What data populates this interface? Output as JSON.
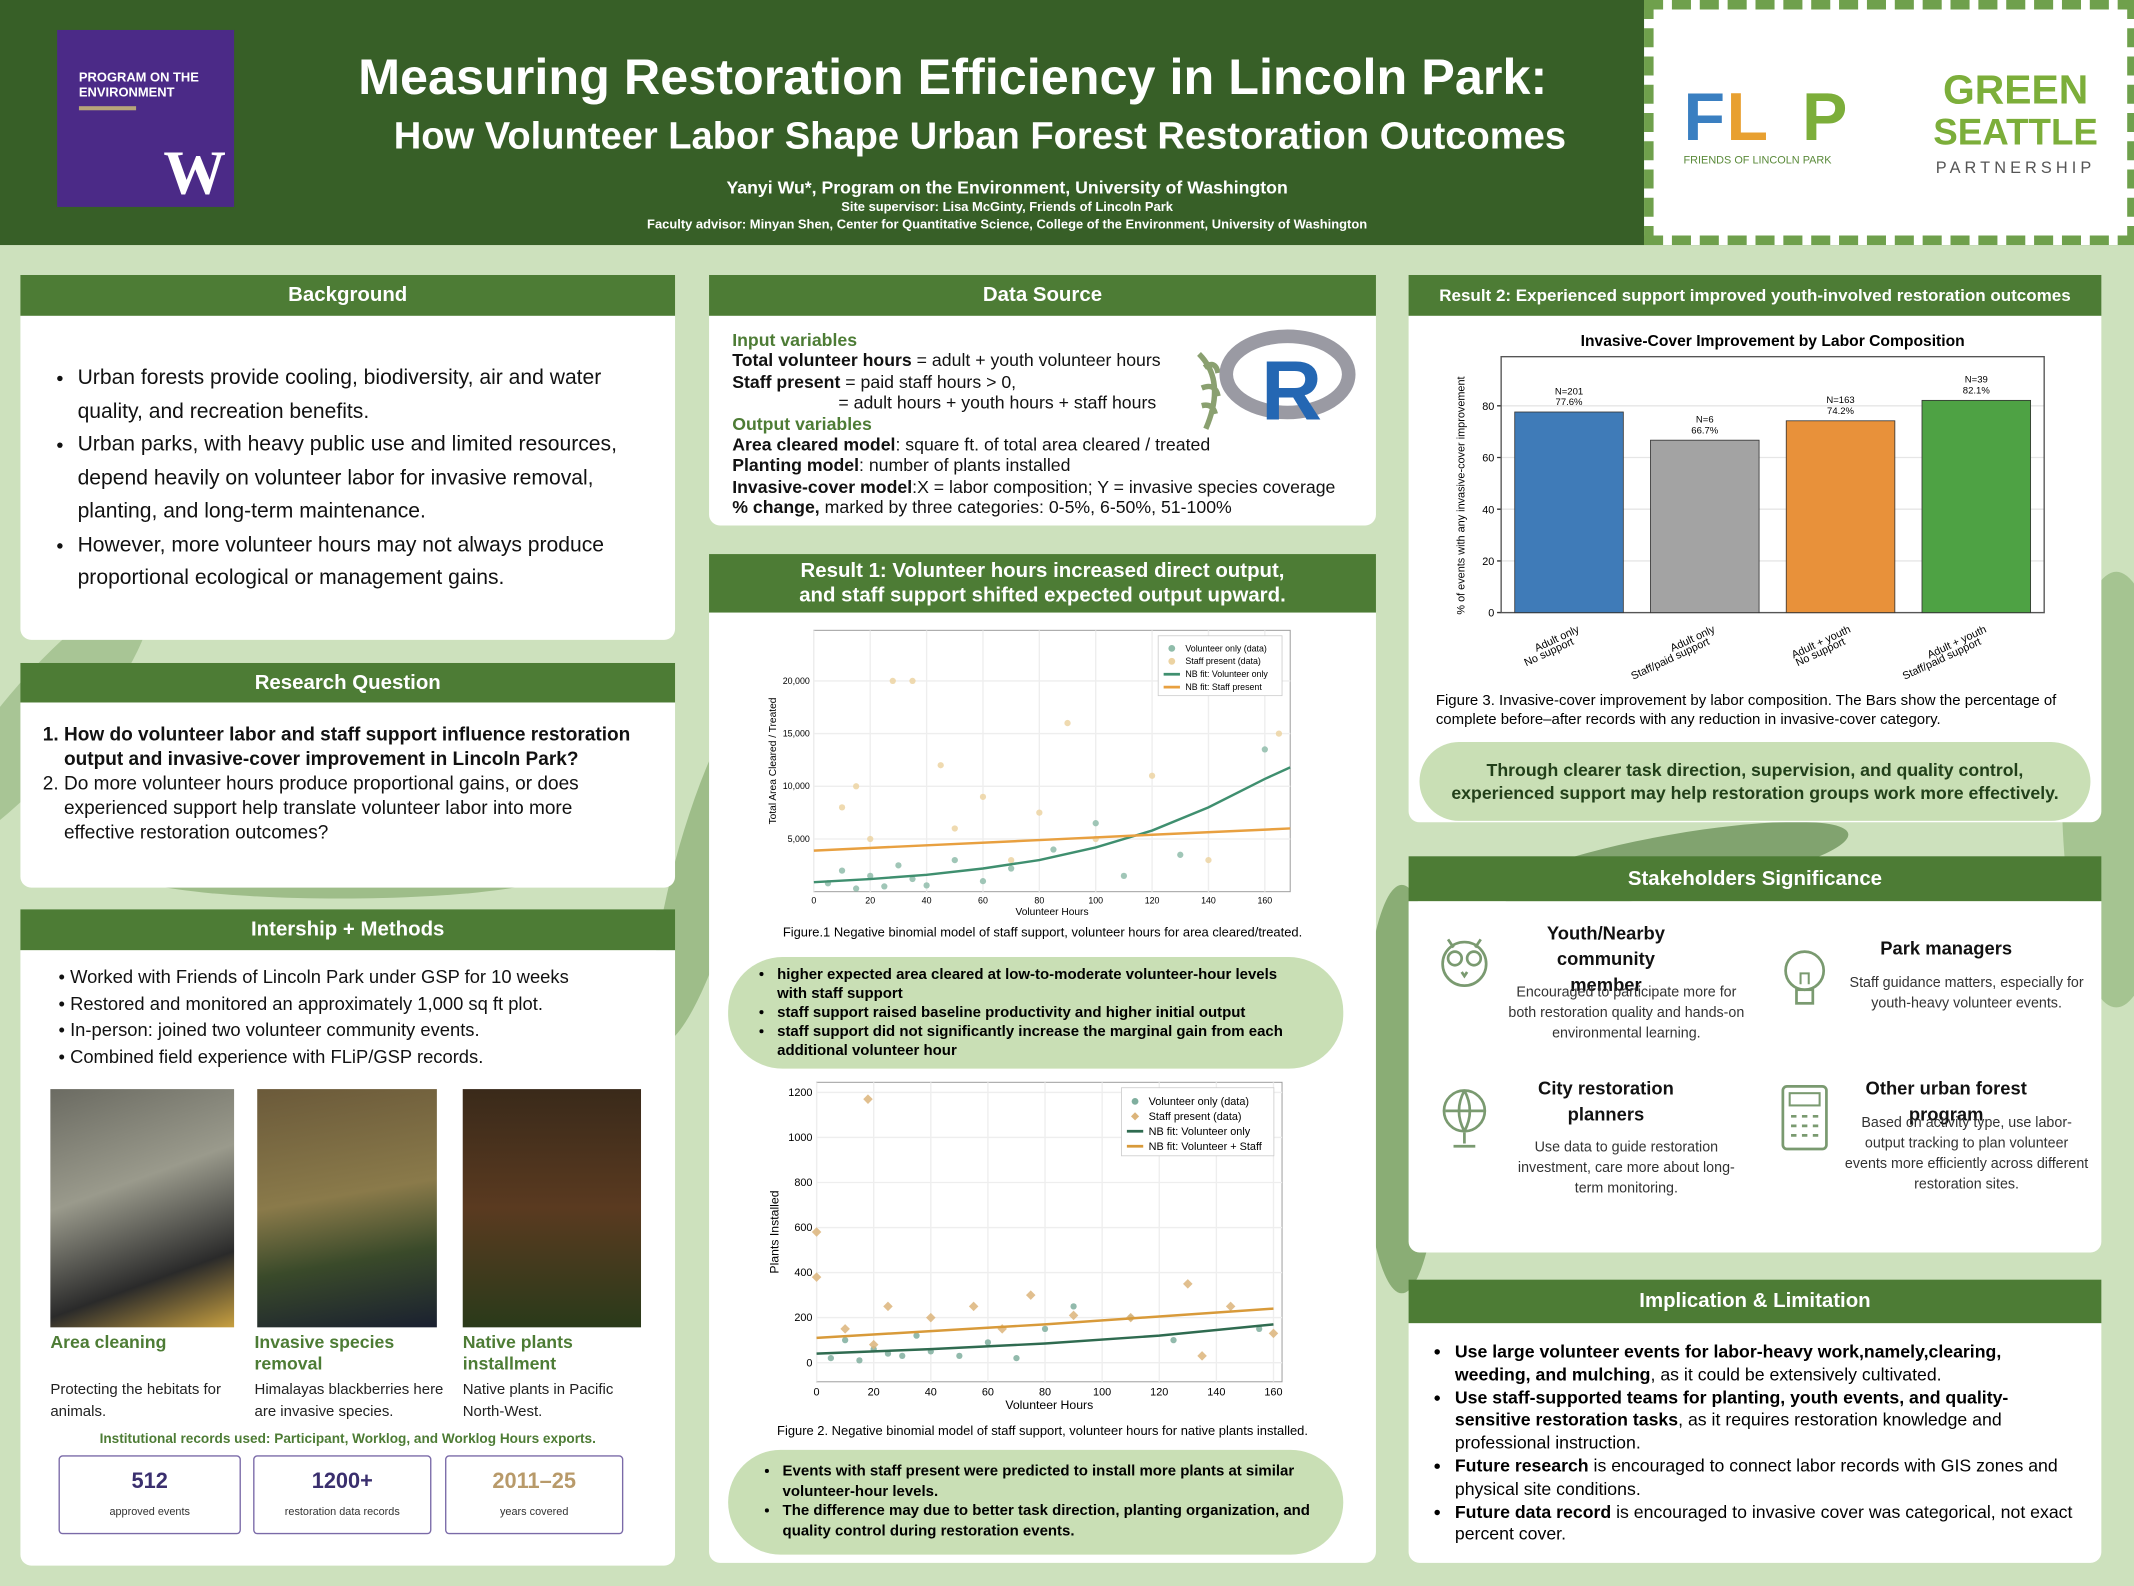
{
  "header": {
    "org": "PROGRAM ON THE ENVIRONMENT",
    "org_mark": "W",
    "title": "Measuring Restoration Efficiency in Lincoln Park:",
    "subtitle": "How Volunteer Labor  Shape Urban Forest Restoration Outcomes",
    "author": "Yanyi Wu*, Program on the Environment, University of Washington",
    "supervisor": "Site supervisor: Lisa McGinty, Friends of Lincoln Park",
    "advisor": "Faculty advisor: Minyan Shen, Center for Quantitative Science, College of the Environment, University of Washington",
    "flip_logo": [
      "F",
      "L",
      "P"
    ],
    "flip_name": "FRIENDS OF LINCOLN PARK",
    "gsp_logo": [
      "GREEN",
      "SEATTLE",
      "PARTNERSHIP"
    ]
  },
  "background": {
    "title": "Background",
    "bullets": [
      "Urban forests provide cooling, biodiversity, air and water quality, and recreation benefits.",
      "Urban parks, with heavy public use and limited  resources, depend heavily on volunteer labor for invasive removal, planting, and long-term maintenance.",
      "However, more volunteer hours may not always produce proportional ecological or management gains."
    ]
  },
  "research_question": {
    "title": "Research Question",
    "items": [
      "How do volunteer labor and staff support influence restoration output and invasive-cover improvement in Lincoln Park?",
      "Do more volunteer hours produce proportional gains, or does experienced support help translate volunteer labor into more effective restoration outcomes?"
    ]
  },
  "methods": {
    "title": "Intership + Methods",
    "bullets": [
      "Worked with Friends of Lincoln Park under GSP for 10 weeks",
      "Restored and monitored an approximately 1,000 sq ft plot.",
      "In-person: joined two volunteer community events.",
      "Combined field experience with FLiP/GSP records."
    ],
    "photos": [
      {
        "title": "Area cleaning",
        "text": "Protecting the hebitats for animals."
      },
      {
        "title": "Invasive species removal",
        "text": "Himalayas blackberries here are invasive species."
      },
      {
        "title": "Native plants installment",
        "text": "Native plants in Pacific North-West."
      }
    ],
    "records_note": "Institutional records used: Participant, Worklog, and Worklog Hours exports.",
    "stats": [
      {
        "value": 512,
        "label": "approved events"
      },
      {
        "value": "1200+",
        "label": "restoration data records"
      },
      {
        "value": "2011–25",
        "label": "years covered"
      }
    ]
  },
  "data_source": {
    "title": "Data Source",
    "input_heading": "Input variables",
    "input": [
      {
        "b": "Total volunteer hours",
        "t": " = adult + youth volunteer hours"
      },
      {
        "b": "Staff present",
        "t": " = paid staff hours > 0,"
      },
      {
        "t": "= adult hours  + youth hours + staff hours"
      }
    ],
    "output_heading": "Output variables",
    "output": [
      {
        "b": "Area cleared model",
        "t": ": square ft. of total area cleared / treated"
      },
      {
        "b": "Planting model",
        "t": ":  number of plants installed"
      },
      {
        "b": "Invasive-cover model",
        "t": ":X = labor composition; Y = invasive species coverage"
      },
      {
        "b": "% change,",
        "t": " marked by three categories: 0-5%, 6-50%, 51-100%"
      }
    ],
    "r_logo": "R"
  },
  "result1": {
    "title": [
      "Result 1: Volunteer hours increased direct output,",
      "and staff support shifted expected output upward."
    ],
    "figure1": {
      "type": "scatter",
      "x_label": "Volunteer Hours",
      "y_label": "Total Area Cleared / Treated",
      "xlim": [
        0,
        169
      ],
      "ylim": [
        0,
        24800
      ],
      "xticks": [
        0,
        20,
        40,
        60,
        80,
        100,
        120,
        140,
        160
      ],
      "yticks": [
        {
          "value": 5000,
          "label": "5,000"
        },
        {
          "value": 10000,
          "label": "10,000"
        },
        {
          "value": 15000,
          "label": "15,000"
        },
        {
          "value": 20000,
          "label": "20,000"
        }
      ],
      "legend": "upper right",
      "series": [
        {
          "name": "Volunteer only (data)",
          "color": "#8fbcaa",
          "marker": "circle",
          "x": [
            5,
            10,
            15,
            20,
            25,
            30,
            35,
            40,
            50,
            60,
            70,
            85,
            100,
            110,
            130,
            160
          ],
          "values": [
            800,
            2000,
            300,
            1500,
            500,
            2500,
            1200,
            600,
            3000,
            1000,
            2200,
            4000,
            6500,
            1500,
            3500,
            13500
          ]
        },
        {
          "name": "Staff present (data)",
          "color": "#ecd3a2",
          "marker": "circle",
          "x": [
            10,
            15,
            20,
            28,
            35,
            45,
            50,
            60,
            70,
            80,
            90,
            100,
            120,
            140,
            165
          ],
          "values": [
            8000,
            10000,
            5000,
            20000,
            20000,
            12000,
            6000,
            9000,
            3000,
            7500,
            16000,
            5000,
            11000,
            3000,
            15000
          ]
        },
        {
          "name": "NB fit: Volunteer only",
          "color": "#3f8f6f",
          "kind": "line",
          "x": [
            0,
            20,
            40,
            60,
            80,
            100,
            120,
            140,
            160,
            169
          ],
          "values": [
            900,
            1200,
            1600,
            2200,
            3000,
            4200,
            5800,
            8000,
            10700,
            11800
          ]
        },
        {
          "name": "NB fit: Staff present",
          "color": "#e8a040",
          "kind": "line",
          "x": [
            0,
            40,
            80,
            120,
            169
          ],
          "values": [
            3900,
            4400,
            4900,
            5400,
            6000
          ]
        }
      ]
    },
    "caption1": "Figure.1 Negative binomial model of staff support, volunteer hours for area cleared/treated.",
    "bullets1": [
      "higher expected area cleared at low-to-moderate volunteer-hour levels with staff support",
      "staff support raised baseline productivity and higher initial output",
      "staff support did not significantly increase the marginal gain from each additional volunteer hour"
    ],
    "figure2": {
      "type": "scatter",
      "x_label": "Volunteer Hours",
      "y_label": "Plants Installed",
      "xlim": [
        0,
        163
      ],
      "ylim": [
        -85,
        1245
      ],
      "xticks": [
        0,
        20,
        40,
        60,
        80,
        100,
        120,
        140,
        160
      ],
      "yticks": [
        0,
        200,
        400,
        600,
        800,
        1000,
        1200
      ],
      "legend": "upper right",
      "series": [
        {
          "name": "Volunteer only (data)",
          "color": "#7fae9e",
          "marker": "circle",
          "x": [
            5,
            10,
            15,
            20,
            25,
            30,
            35,
            40,
            50,
            60,
            70,
            80,
            90,
            110,
            125,
            155
          ],
          "values": [
            20,
            100,
            10,
            60,
            40,
            30,
            120,
            50,
            30,
            90,
            20,
            150,
            250,
            200,
            100,
            150
          ]
        },
        {
          "name": "Staff present (data)",
          "color": "#dcb47a",
          "marker": "diamond",
          "x": [
            0,
            0,
            18,
            10,
            20,
            25,
            40,
            55,
            65,
            75,
            90,
            110,
            130,
            135,
            145,
            160
          ],
          "values": [
            580,
            380,
            1170,
            150,
            80,
            250,
            200,
            250,
            150,
            300,
            210,
            200,
            350,
            30,
            250,
            130
          ]
        },
        {
          "name": "NB fit: Volunteer only",
          "color": "#2f6b50",
          "kind": "line",
          "x": [
            0,
            40,
            80,
            120,
            160
          ],
          "values": [
            40,
            60,
            85,
            120,
            170
          ]
        },
        {
          "name": "NB fit: Volunteer + Staff",
          "color": "#d89a3a",
          "kind": "line",
          "x": [
            0,
            40,
            80,
            120,
            160
          ],
          "values": [
            110,
            140,
            170,
            205,
            240
          ]
        }
      ]
    },
    "caption2": "Figure 2. Negative binomial model of staff support, volunteer hours for native plants installed.",
    "bullets2": [
      "Events with staff present were predicted to install more plants at similar volunteer-hour levels.",
      "The difference may due to better task direction, planting organization, and quality control during restoration events."
    ]
  },
  "result2": {
    "title": "Result 2: Experienced support improved youth-involved restoration outcomes",
    "figure3": {
      "type": "bar",
      "title": "Invasive-Cover Improvement by Labor Composition",
      "y_label": "% of events with any invasive-cover improvement",
      "categories": [
        [
          "Adult only",
          "No support"
        ],
        [
          "Adult only",
          "Staff/paid support"
        ],
        [
          "Adult + youth",
          "No support"
        ],
        [
          "Adult + youth",
          "Staff/paid support"
        ]
      ],
      "values": [
        77.6,
        66.7,
        74.2,
        82.1
      ],
      "value_labels": [
        "77.6%",
        "66.7%",
        "74.2%",
        "82.1%"
      ],
      "n_labels": [
        "N=201",
        "N=6",
        "N=163",
        "N=39"
      ],
      "colors": [
        "#3f7bb8",
        "#a3a3a3",
        "#e8913a",
        "#4ea244"
      ],
      "ylim": [
        0,
        99
      ],
      "yticks": [
        0,
        20,
        40,
        60,
        80
      ],
      "grid": true
    },
    "caption": "Figure 3. Invasive-cover improvement by labor composition. The Bars show the percentage of complete before–after records with any reduction in invasive-cover category.",
    "conclusion": "Through clearer task direction, supervision, and quality control, experienced support may help restoration groups work more effectively."
  },
  "stakeholders": {
    "title": "Stakeholders Significance",
    "items": [
      {
        "title": "Youth/Nearby community member",
        "text": "Encouraged to participate more for both restoration quality and hands-on environmental learning."
      },
      {
        "title": "Park managers",
        "text": "Staff guidance matters, especially for youth-heavy volunteer events."
      },
      {
        "title": "City restoration planners",
        "text": "Use data to guide restoration investment, care more about long-term monitoring."
      },
      {
        "title": "Other urban forest program",
        "text": "Based on activity type, use labor-output tracking to plan volunteer events more efficiently across different restoration sites."
      }
    ]
  },
  "implication": {
    "title": "Implication & Limitation",
    "bullets": [
      {
        "b": "Use large volunteer events for labor-heavy work,namely,clearing, weeding, and mulching",
        "t": ", as it could be extensively cultivated."
      },
      {
        "b": "Use staff-supported teams for planting, youth events, and quality-sensitive restoration tasks",
        "t": ", as it requires restoration knowledge and professional instruction."
      },
      {
        "b": "Future research",
        "t": " is encouraged to connect labor records with GIS zones and physical site conditions."
      },
      {
        "b": "Future data record",
        "t": " is encouraged to invasive cover was categorical, not exact percent cover."
      }
    ]
  }
}
